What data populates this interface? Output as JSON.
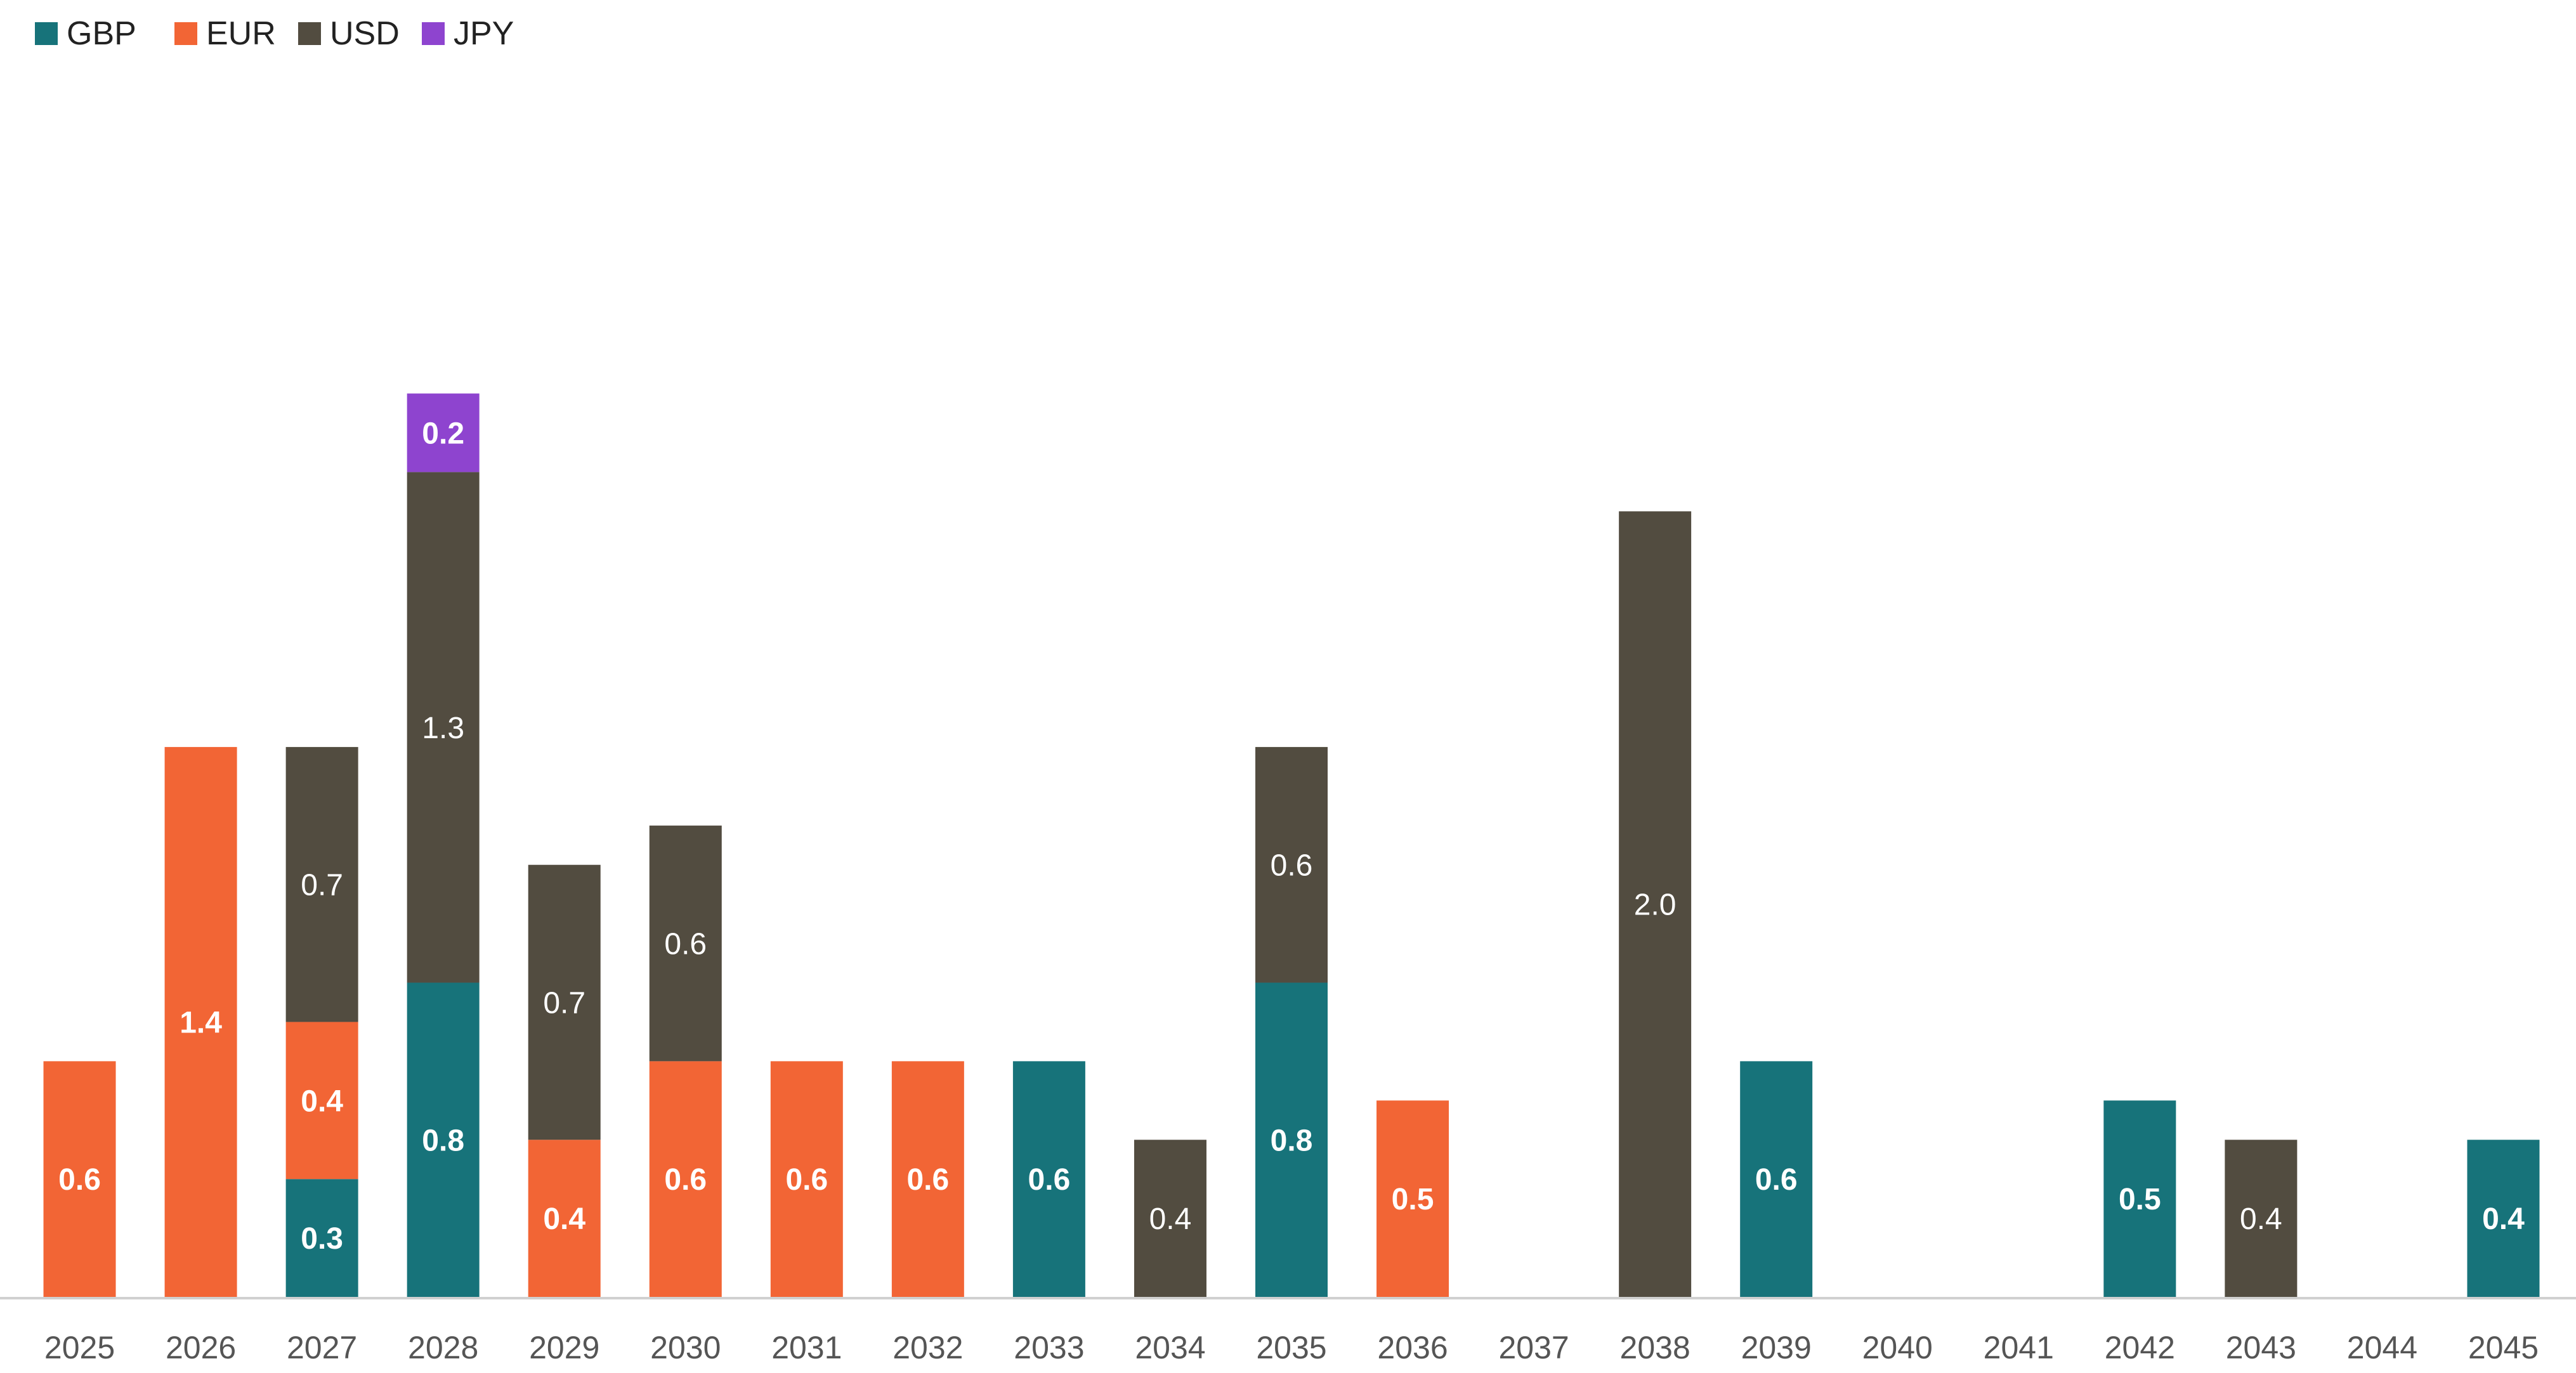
{
  "chart_data": {
    "type": "bar",
    "stacked": true,
    "title": "",
    "xlabel": "",
    "ylabel": "",
    "ylim": [
      0,
      3.1
    ],
    "grid": false,
    "legend_position": "top-left",
    "categories": [
      "2025",
      "2026",
      "2027",
      "2028",
      "2029",
      "2030",
      "2031",
      "2032",
      "2033",
      "2034",
      "2035",
      "2036",
      "2037",
      "2038",
      "2039",
      "2040",
      "2041",
      "2042",
      "2043",
      "2044",
      "2045"
    ],
    "series": [
      {
        "name": "GBP",
        "color": "#17737A",
        "label_color": "#FFFFFF",
        "label_bold": true,
        "values": [
          0,
          0,
          0.3,
          0.8,
          0,
          0,
          0,
          0,
          0.6,
          0,
          0.8,
          0,
          0,
          0,
          0.6,
          0,
          0,
          0.5,
          0,
          0,
          0.4
        ],
        "labels": [
          "",
          "",
          "0.3",
          "0.8",
          "",
          "",
          "",
          "",
          "0.6",
          "",
          "0.8",
          "",
          "",
          "",
          "0.6",
          "",
          "",
          "0.5",
          "",
          "",
          "0.4"
        ]
      },
      {
        "name": "EUR",
        "color": "#F26535",
        "label_color": "#FFFFFF",
        "label_bold": true,
        "values": [
          0.6,
          1.4,
          0.4,
          0,
          0.4,
          0.6,
          0.6,
          0.6,
          0,
          0,
          0,
          0.5,
          0,
          0,
          0,
          0,
          0,
          0,
          0,
          0,
          0
        ],
        "labels": [
          "0.6",
          "1.4",
          "0.4",
          "",
          "0.4",
          "0.6",
          "0.6",
          "0.6",
          "",
          "",
          "",
          "0.5",
          "",
          "",
          "",
          "",
          "",
          "",
          "",
          "",
          ""
        ]
      },
      {
        "name": "USD",
        "color": "#524C40",
        "label_color": "#FFFFFF",
        "label_bold": false,
        "values": [
          0,
          0,
          0.7,
          1.3,
          0.7,
          0.6,
          0,
          0,
          0,
          0.4,
          0.6,
          0,
          0,
          2.0,
          0,
          0,
          0,
          0,
          0.4,
          0,
          0
        ],
        "labels": [
          "",
          "",
          "0.7",
          "1.3",
          "0.7",
          "0.6",
          "",
          "",
          "",
          "0.4",
          "0.6",
          "",
          "",
          "2.0",
          "",
          "",
          "",
          "",
          "0.4",
          "",
          ""
        ]
      },
      {
        "name": "JPY",
        "color": "#8E44CF",
        "label_color": "#FFFFFF",
        "label_bold": true,
        "values": [
          0,
          0,
          0,
          0.2,
          0,
          0,
          0,
          0,
          0,
          0,
          0,
          0,
          0,
          0,
          0,
          0,
          0,
          0,
          0,
          0,
          0
        ],
        "labels": [
          "",
          "",
          "",
          "0.2",
          "",
          "",
          "",
          "",
          "",
          "",
          "",
          "",
          "",
          "",
          "",
          "",
          "",
          "",
          "",
          "",
          ""
        ]
      }
    ]
  }
}
